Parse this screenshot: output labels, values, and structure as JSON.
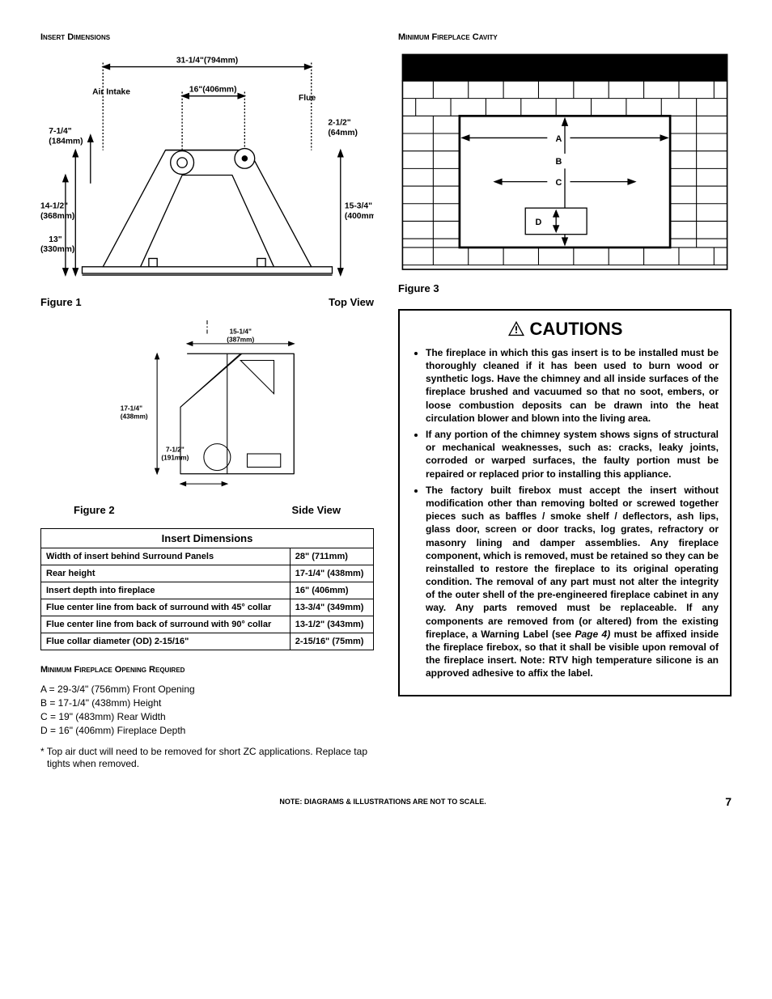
{
  "left": {
    "heading": "Insert Dimensions",
    "fig1": {
      "caption_left": "Figure 1",
      "caption_right": "Top View",
      "labels": {
        "overall_width": "31-1/4\"(794mm)",
        "air_intake": "Air Intake",
        "flue_span": "16\"(406mm)",
        "flue": "Flue",
        "flue_dia": "2-1/2\" (64mm)",
        "left_7_1_4": "7-1/4\" (184mm)",
        "left_14_1_2": "14-1/2\" (368mm)",
        "left_13": "13\" (330mm)",
        "right_15_3_4": "15-3/4\" (400mm)"
      }
    },
    "fig2": {
      "caption_left": "Figure 2",
      "caption_right": "Side View",
      "labels": {
        "top_depth": "15-1/4\" (387mm)",
        "height": "17-1/4\" (438mm)",
        "bottom_depth": "7-1/2\" (191mm)"
      }
    },
    "table": {
      "title": "Insert Dimensions",
      "rows": [
        {
          "label": "Width of insert behind Surround Panels",
          "value": "28\" (711mm)"
        },
        {
          "label": "Rear height",
          "value": "17-1/4\" (438mm)"
        },
        {
          "label": "Insert depth into fireplace",
          "value": "16\" (406mm)"
        },
        {
          "label": "Flue center line from back of surround with 45° collar",
          "value": "13-3/4\" (349mm)"
        },
        {
          "label": "Flue center line from back of surround with 90° collar",
          "value": "13-1/2\" (343mm)"
        },
        {
          "label": "Flue collar diameter (OD)    2-15/16\"",
          "value": "2-15/16\" (75mm)"
        }
      ]
    },
    "opening": {
      "heading": "Minimum Fireplace Opening Required",
      "items": [
        "A  =  29-3/4\" (756mm) Front Opening",
        "B  =  17-1/4\" (438mm) Height",
        "C  =  19\" (483mm) Rear Width",
        "D  =  16\" (406mm) Fireplace Depth"
      ],
      "footnote": "*  Top air duct will need to be removed for short ZC applications. Replace tap tights when removed."
    }
  },
  "right": {
    "heading": "Minimum Fireplace Cavity",
    "fig3": {
      "caption": "Figure 3",
      "labels": {
        "a": "A",
        "b": "B",
        "c": "C",
        "d": "D"
      }
    },
    "cautions": {
      "title": "CAUTIONS",
      "items": [
        "The fireplace in which this gas insert is to be installed must be thoroughly cleaned if it has been used to burn wood or synthetic logs. Have the chimney and all inside surfaces of the fireplace brushed and vacuumed so that no soot, embers, or loose combustion deposits can be drawn into the heat circulation blower and blown into the living area.",
        "If any portion of the chimney system shows signs of structural or mechanical weaknesses, such as: cracks, leaky joints, corroded or warped surfaces, the faulty portion must be repaired or replaced prior to installing this appliance.",
        "The factory built firebox must accept the insert without modification other than removing bolted or screwed together pieces such as baffles / smoke shelf / deflectors, ash lips, glass door, screen or door tracks, log grates, refractory or masonry lining and damper assemblies. Any fireplace component, which is removed, must be retained so they can be reinstalled to restore the fireplace to its original operating condition. The removal of any part must not alter the integrity of the outer shell of the pre-engineered fireplace cabinet in any way.  Any parts removed must be replaceable.  If any components are removed from (or altered) from the existing fireplace, a Warning Label (see <span class=\"page-ref\">Page 4)</span> must be affixed inside the fireplace firebox, so that it shall be visible upon removal of the fireplace insert.  Note: RTV high temperature silicone is an approved adhesive to affix the label."
      ]
    }
  },
  "footer": {
    "note": "NOTE: DIAGRAMS & ILLUSTRATIONS ARE NOT TO SCALE.",
    "page": "7"
  },
  "colors": {
    "stroke": "#000000",
    "fill_black": "#000000",
    "bg": "#ffffff"
  }
}
